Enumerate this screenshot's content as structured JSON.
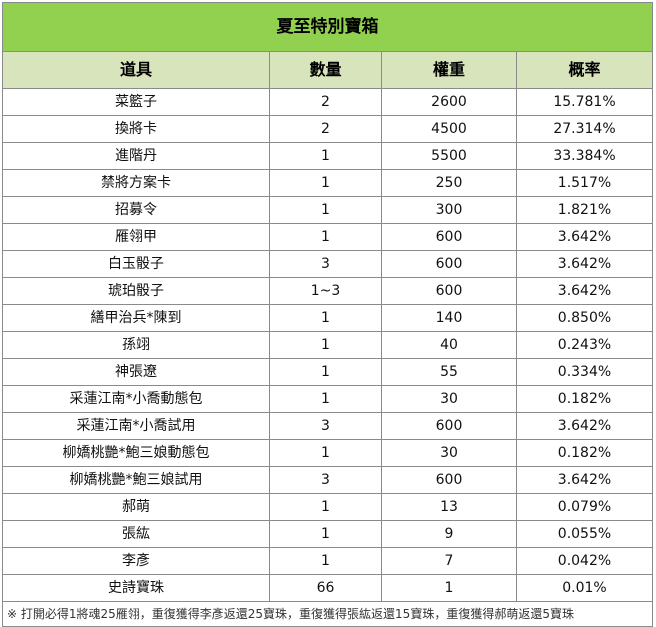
{
  "title": "夏至特別寶箱",
  "headers": [
    "道具",
    "數量",
    "權重",
    "概率"
  ],
  "rows": [
    {
      "item": "菜籃子",
      "qty": "2",
      "weight": "2600",
      "prob": "15.781%"
    },
    {
      "item": "換將卡",
      "qty": "2",
      "weight": "4500",
      "prob": "27.314%"
    },
    {
      "item": "進階丹",
      "qty": "1",
      "weight": "5500",
      "prob": "33.384%"
    },
    {
      "item": "禁將方案卡",
      "qty": "1",
      "weight": "250",
      "prob": "1.517%"
    },
    {
      "item": "招募令",
      "qty": "1",
      "weight": "300",
      "prob": "1.821%"
    },
    {
      "item": "雁翎甲",
      "qty": "1",
      "weight": "600",
      "prob": "3.642%"
    },
    {
      "item": "白玉骰子",
      "qty": "3",
      "weight": "600",
      "prob": "3.642%"
    },
    {
      "item": "琥珀骰子",
      "qty": "1~3",
      "weight": "600",
      "prob": "3.642%"
    },
    {
      "item": "繕甲治兵*陳到",
      "qty": "1",
      "weight": "140",
      "prob": "0.850%"
    },
    {
      "item": "孫翊",
      "qty": "1",
      "weight": "40",
      "prob": "0.243%"
    },
    {
      "item": "神張遼",
      "qty": "1",
      "weight": "55",
      "prob": "0.334%"
    },
    {
      "item": "采蓮江南*小喬動態包",
      "qty": "1",
      "weight": "30",
      "prob": "0.182%"
    },
    {
      "item": "采蓮江南*小喬試用",
      "qty": "3",
      "weight": "600",
      "prob": "3.642%"
    },
    {
      "item": "柳嬌桃艷*鮑三娘動態包",
      "qty": "1",
      "weight": "30",
      "prob": "0.182%"
    },
    {
      "item": "柳嬌桃艷*鮑三娘試用",
      "qty": "3",
      "weight": "600",
      "prob": "3.642%"
    },
    {
      "item": "郝萌",
      "qty": "1",
      "weight": "13",
      "prob": "0.079%"
    },
    {
      "item": "張紘",
      "qty": "1",
      "weight": "9",
      "prob": "0.055%"
    },
    {
      "item": "李彥",
      "qty": "1",
      "weight": "7",
      "prob": "0.042%"
    },
    {
      "item": "史詩寶珠",
      "qty": "66",
      "weight": "1",
      "prob": "0.01%"
    }
  ],
  "note": "※ 打開必得1將魂25雁翎，重復獲得李彥返還25寶珠，重復獲得張紘返還15寶珠，重復獲得郝萌返還5寶珠"
}
